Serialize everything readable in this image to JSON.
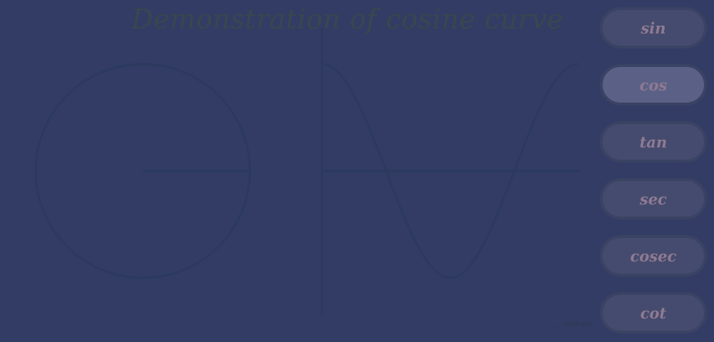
{
  "title": "Demonstration of cosine curve",
  "buttons": [
    {
      "label": "sin",
      "active": false
    },
    {
      "label": "cos",
      "active": true
    },
    {
      "label": "tan",
      "active": false
    },
    {
      "label": "sec",
      "active": false
    },
    {
      "label": "cosec",
      "active": false
    },
    {
      "label": "cot",
      "active": false
    }
  ],
  "credit": "... wolfram",
  "colors": {
    "background": "#333c64",
    "curve": "#2b3a5e",
    "title": "#36484f",
    "button": "#454b6e",
    "button_active": "#5b6186",
    "button_text": "#8e7a92"
  }
}
